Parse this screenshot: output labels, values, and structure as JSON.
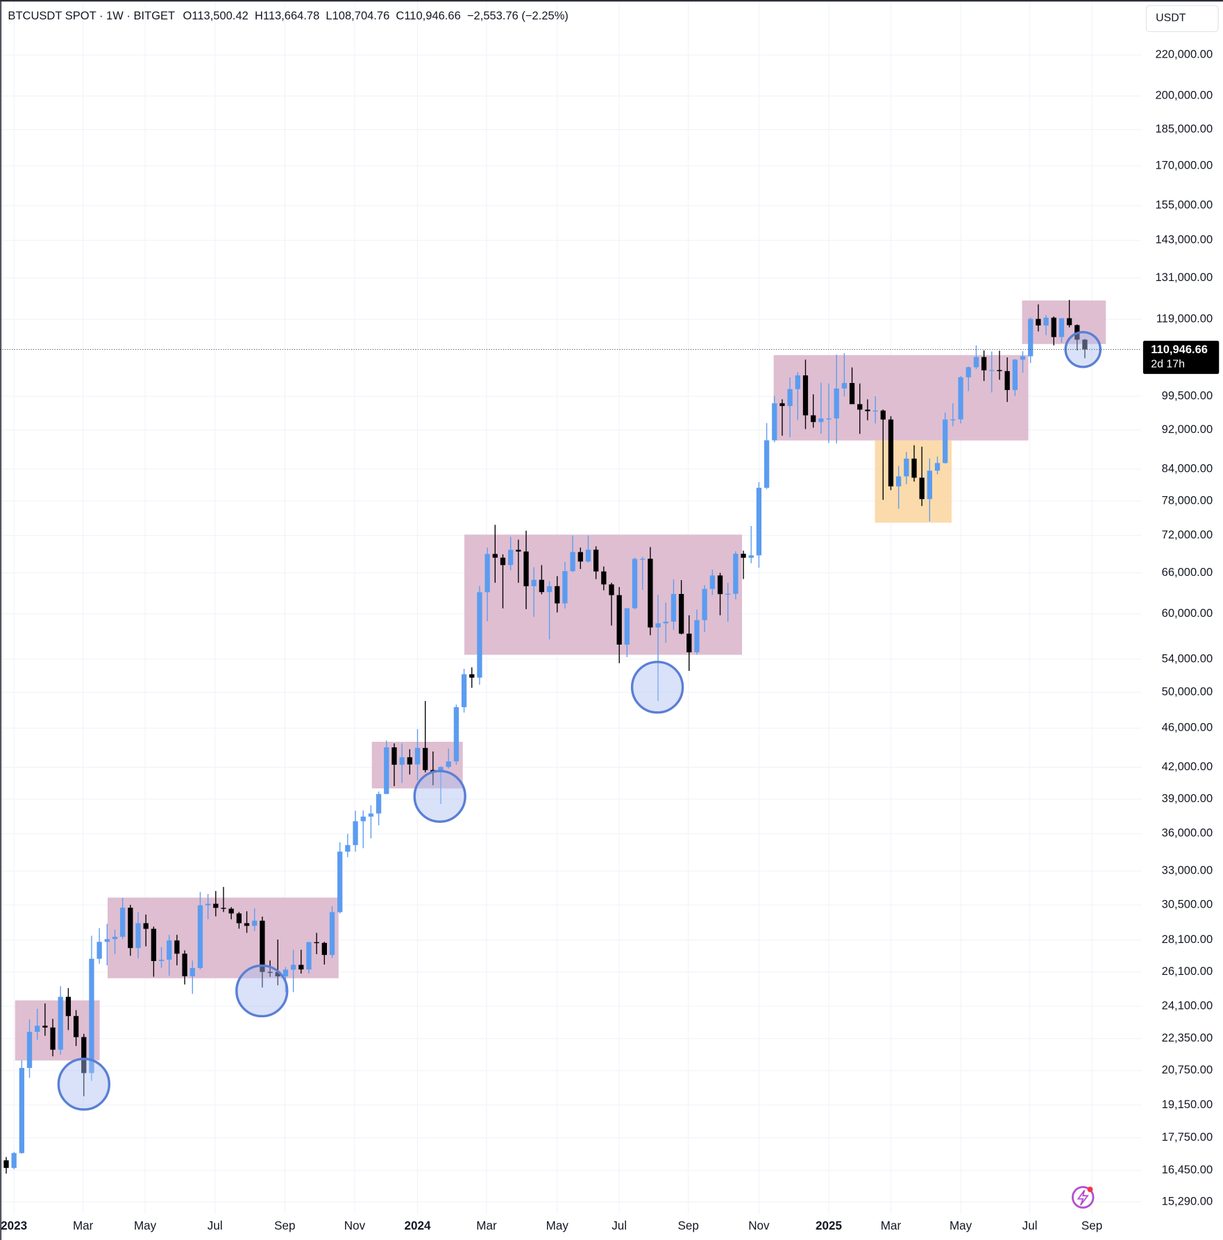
{
  "chart_data": {
    "type": "candlestick",
    "header": {
      "symbol": "BTCUSDT SPOT · 1W · BITGET",
      "open": "O113,500.42",
      "high": "H113,664.78",
      "low": "L108,704.76",
      "close": "C110,946.66",
      "change": "−2,553.76 (−2.25%)"
    },
    "currency": "USDT",
    "last_price_label": "110,946.66",
    "countdown": "2d 17h",
    "log_scale": true,
    "grid": true,
    "up_color": "#5b9cf0",
    "down_color": "#000000",
    "ylim": [
      14870,
      250000
    ],
    "yticks": [
      {
        "value": 15290,
        "label": "15,290.00"
      },
      {
        "value": 16450,
        "label": "16,450.00"
      },
      {
        "value": 17750,
        "label": "17,750.00"
      },
      {
        "value": 19150,
        "label": "19,150.00"
      },
      {
        "value": 20750,
        "label": "20,750.00"
      },
      {
        "value": 22350,
        "label": "22,350.00"
      },
      {
        "value": 24100,
        "label": "24,100.00"
      },
      {
        "value": 26100,
        "label": "26,100.00"
      },
      {
        "value": 28100,
        "label": "28,100.00"
      },
      {
        "value": 30500,
        "label": "30,500.00"
      },
      {
        "value": 33000,
        "label": "33,000.00"
      },
      {
        "value": 36000,
        "label": "36,000.00"
      },
      {
        "value": 39000,
        "label": "39,000.00"
      },
      {
        "value": 42000,
        "label": "42,000.00"
      },
      {
        "value": 46000,
        "label": "46,000.00"
      },
      {
        "value": 50000,
        "label": "50,000.00"
      },
      {
        "value": 54000,
        "label": "54,000.00"
      },
      {
        "value": 60000,
        "label": "60,000.00"
      },
      {
        "value": 66000,
        "label": "66,000.00"
      },
      {
        "value": 72000,
        "label": "72,000.00"
      },
      {
        "value": 78000,
        "label": "78,000.00"
      },
      {
        "value": 84000,
        "label": "84,000.00"
      },
      {
        "value": 92000,
        "label": "92,000.00"
      },
      {
        "value": 99500,
        "label": "99,500.00"
      },
      {
        "value": 119000,
        "label": "119,000.00"
      },
      {
        "value": 131000,
        "label": "131,000.00"
      },
      {
        "value": 143000,
        "label": "143,000.00"
      },
      {
        "value": 155000,
        "label": "155,000.00"
      },
      {
        "value": 170000,
        "label": "170,000.00"
      },
      {
        "value": 185000,
        "label": "185,000.00"
      },
      {
        "value": 200000,
        "label": "200,000.00"
      },
      {
        "value": 220000,
        "label": "220,000.00"
      }
    ],
    "xlim": [
      -0.8,
      146.3
    ],
    "xticks": [
      {
        "value": 1.0,
        "label": "2023"
      },
      {
        "value": 9.9,
        "label": "Mar"
      },
      {
        "value": 17.9,
        "label": "May"
      },
      {
        "value": 26.9,
        "label": "Jul"
      },
      {
        "value": 35.9,
        "label": "Sep"
      },
      {
        "value": 44.9,
        "label": "Nov"
      },
      {
        "value": 53.0,
        "label": "2024"
      },
      {
        "value": 61.9,
        "label": "Mar"
      },
      {
        "value": 71.0,
        "label": "May"
      },
      {
        "value": 79.0,
        "label": "Jul"
      },
      {
        "value": 87.9,
        "label": "Sep"
      },
      {
        "value": 97.0,
        "label": "Nov"
      },
      {
        "value": 106.0,
        "label": "2025"
      },
      {
        "value": 114.0,
        "label": "Mar"
      },
      {
        "value": 123.0,
        "label": "May"
      },
      {
        "value": 131.9,
        "label": "Jul"
      },
      {
        "value": 139.9,
        "label": "Sep"
      }
    ],
    "open": [
      16842,
      16547,
      17128,
      20877,
      22707,
      23031,
      22935,
      21783,
      24631,
      23554,
      22430,
      20630,
      26910,
      27990,
      28170,
      28320,
      30300,
      27590,
      29230,
      28850,
      26770,
      26850,
      28080,
      27230,
      25840,
      26340,
      30470,
      30580,
      30290,
      30230,
      29900,
      29230,
      29050,
      29400,
      26100,
      26090,
      25830,
      26240,
      26530,
      26250,
      27970,
      27920,
      27150,
      29990,
      34520,
      35050,
      37050,
      37450,
      37720,
      39470,
      43990,
      42250,
      42990,
      42280,
      43930,
      41730,
      41570,
      42030,
      42580,
      48300,
      52140,
      51730,
      63100,
      68960,
      68370,
      67210,
      69630,
      69360,
      63990,
      64940,
      63120,
      63990,
      61480,
      66270,
      69270,
      67760,
      69650,
      66220,
      64250,
      62670,
      55860,
      60790,
      68170,
      68200,
      58130,
      58700,
      58920,
      62840,
      57300,
      54870,
      59130,
      63580,
      65600,
      62820,
      62870,
      69000,
      68360,
      68740,
      80440,
      89830,
      97900,
      97280,
      101170,
      104460,
      95190,
      93720,
      94500,
      94510,
      101330,
      102620,
      97700,
      96460,
      96120,
      96250,
      94270,
      80700,
      82600,
      86080,
      82340,
      78350,
      83700,
      85200,
      94270,
      94300,
      104000,
      106450,
      109000,
      105700,
      105750,
      105500,
      100960,
      108350,
      109200,
      119100,
      117300,
      119450,
      114200,
      119300,
      117400,
      113500.42
    ],
    "high": [
      16972,
      17176,
      21259,
      23371,
      23955,
      24255,
      23400,
      25250,
      25134,
      23880,
      22600,
      28390,
      28900,
      29190,
      28800,
      31000,
      30500,
      30000,
      29820,
      29000,
      27660,
      28450,
      28450,
      27440,
      26800,
      31430,
      31280,
      31500,
      31800,
      30340,
      30000,
      30050,
      30250,
      29680,
      26800,
      28140,
      26400,
      27480,
      27480,
      28000,
      28580,
      28000,
      30400,
      35280,
      35980,
      37970,
      37990,
      38450,
      39700,
      44700,
      44400,
      44400,
      43800,
      45900,
      49000,
      43570,
      42100,
      43880,
      48600,
      52800,
      52980,
      64000,
      69990,
      73800,
      68900,
      71770,
      71300,
      72800,
      66880,
      67200,
      64750,
      65500,
      67700,
      71980,
      70000,
      71990,
      70200,
      66980,
      64500,
      63860,
      59500,
      68400,
      68500,
      70080,
      62700,
      61600,
      65000,
      64900,
      59800,
      60600,
      64130,
      66500,
      66000,
      64500,
      69400,
      69500,
      73600,
      81500,
      93480,
      99600,
      98800,
      104000,
      105250,
      108350,
      99960,
      102700,
      102500,
      109600,
      109990,
      106400,
      102500,
      98800,
      99500,
      96500,
      95000,
      84600,
      87450,
      88800,
      88500,
      86100,
      86500,
      95800,
      97900,
      104300,
      106660,
      112000,
      110700,
      110400,
      110600,
      108900,
      108500,
      110500,
      119500,
      123200,
      120200,
      119800,
      119300,
      124500,
      117600,
      113664.78
    ],
    "low": [
      16333,
      16497,
      17103,
      20407,
      22290,
      22500,
      21450,
      21532,
      22800,
      21971,
      19549,
      20260,
      26600,
      26500,
      27200,
      28170,
      27100,
      26940,
      27700,
      25810,
      26350,
      25870,
      26500,
      25350,
      24800,
      26250,
      29500,
      29700,
      30000,
      29500,
      28860,
      28580,
      28700,
      25170,
      25800,
      25300,
      24900,
      24900,
      26000,
      26000,
      27200,
      26550,
      26950,
      29900,
      34080,
      34520,
      34800,
      35600,
      36700,
      39470,
      40200,
      40500,
      41300,
      40750,
      41500,
      40280,
      38550,
      41880,
      42250,
      47700,
      50520,
      50900,
      59000,
      64500,
      60770,
      66400,
      64500,
      60660,
      59600,
      62800,
      56550,
      60200,
      60750,
      66100,
      66600,
      67600,
      65050,
      63380,
      58400,
      53500,
      54260,
      60630,
      63450,
      57100,
      49000,
      56100,
      57800,
      57200,
      52550,
      54580,
      57500,
      62700,
      59800,
      58900,
      62050,
      65060,
      67500,
      66800,
      80200,
      89400,
      90790,
      90500,
      94150,
      92200,
      92500,
      91200,
      89260,
      89200,
      99500,
      97800,
      91180,
      94100,
      93400,
      78200,
      80000,
      76600,
      81100,
      81600,
      77100,
      74400,
      83000,
      85100,
      92800,
      93400,
      100700,
      106000,
      103100,
      100400,
      103400,
      98200,
      99600,
      105100,
      107500,
      115700,
      114700,
      112000,
      112650,
      116800,
      110700,
      108704.76
    ],
    "close": [
      16547,
      17128,
      20877,
      22707,
      23031,
      22935,
      21783,
      24631,
      23554,
      22430,
      20630,
      26910,
      27990,
      28170,
      28320,
      30300,
      27590,
      29230,
      28850,
      26770,
      26850,
      28080,
      27230,
      25840,
      26340,
      30470,
      30580,
      30290,
      30230,
      29900,
      29230,
      29050,
      29400,
      26100,
      26090,
      25830,
      26240,
      26530,
      26250,
      27970,
      27920,
      27150,
      29990,
      34520,
      35050,
      37050,
      37450,
      37720,
      39470,
      43990,
      42250,
      42990,
      42280,
      43930,
      41730,
      41570,
      42030,
      42580,
      48300,
      52140,
      51730,
      63100,
      68960,
      68370,
      67210,
      69630,
      69360,
      63990,
      64940,
      63120,
      63990,
      61480,
      66270,
      69270,
      67760,
      69650,
      66220,
      64250,
      62670,
      55860,
      60790,
      68170,
      68200,
      58130,
      58700,
      58920,
      62840,
      57300,
      54870,
      59130,
      63580,
      65600,
      62820,
      62870,
      69000,
      68360,
      68740,
      80440,
      89830,
      97900,
      97280,
      101170,
      104460,
      95190,
      93720,
      94500,
      94510,
      101330,
      102620,
      97700,
      96460,
      96120,
      96250,
      94270,
      80700,
      82600,
      86080,
      82340,
      78350,
      83700,
      85200,
      94270,
      94300,
      104000,
      106450,
      109000,
      105700,
      105750,
      105500,
      100960,
      108350,
      109200,
      119100,
      117300,
      119450,
      114200,
      119300,
      117400,
      113500.42,
      110946.66
    ]
  }
}
